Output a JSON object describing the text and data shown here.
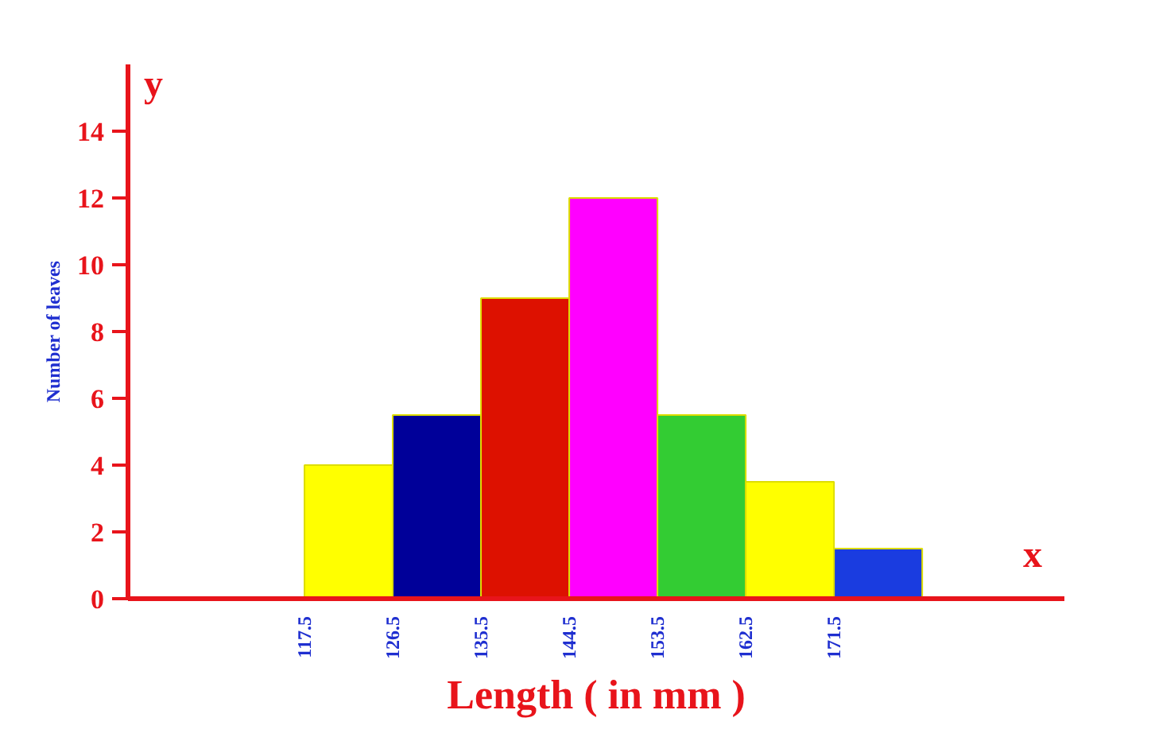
{
  "chart_data": {
    "type": "histogram",
    "xlabel": "Length ( in mm )",
    "ylabel": "Number of leaves",
    "bins": [
      117.5,
      126.5,
      135.5,
      144.5,
      153.5,
      162.5,
      171.5,
      180.5
    ],
    "values": [
      4,
      5.5,
      9,
      12,
      5.5,
      3.5,
      1.5
    ],
    "colors": [
      "#ffff00",
      "#000099",
      "#dd1100",
      "#ff00ff",
      "#33cc33",
      "#ffff00",
      "#1a3ce0"
    ],
    "xlim": [
      99.5,
      195
    ],
    "xticks": [
      117.5,
      126.5,
      135.5,
      144.5,
      153.5,
      162.5,
      171.5
    ],
    "ylim": [
      0,
      16
    ],
    "yticks": [
      {
        "value": 0,
        "label": "0"
      },
      2,
      4,
      6,
      8,
      10,
      12,
      14
    ],
    "annotations": [
      "x",
      "y"
    ],
    "grid": false
  }
}
